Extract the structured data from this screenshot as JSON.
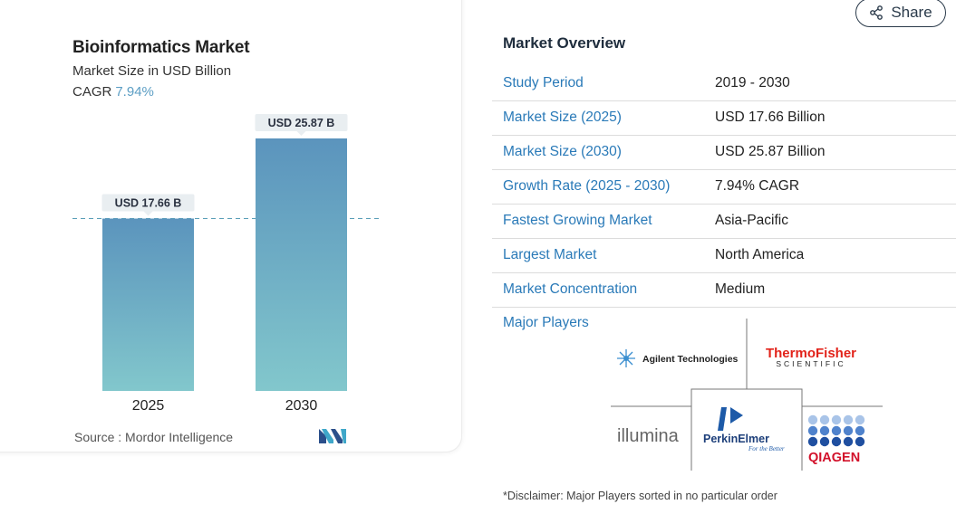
{
  "chart_data": {
    "type": "bar",
    "title": "Bioinformatics Market",
    "subtitle": "Market Size in USD Billion",
    "cagr_label": "CAGR",
    "cagr_value": "7.94%",
    "categories": [
      "2025",
      "2030"
    ],
    "values": [
      17.66,
      25.87
    ],
    "data_labels": [
      "USD 17.66 B",
      "USD 25.87 B"
    ],
    "ylim": [
      0,
      28
    ],
    "grid": false,
    "reference_line": 17.66,
    "colors": {
      "bar_top": "#5b94bd",
      "bar_bottom": "#82c7cc",
      "reference": "#5a9fb8"
    }
  },
  "source": "Source :  Mordor Intelligence",
  "share_label": "Share",
  "overview": {
    "title": "Market Overview",
    "rows": [
      {
        "key": "Study Period",
        "value": "2019 - 2030"
      },
      {
        "key": "Market Size (2025)",
        "value": "USD 17.66 Billion"
      },
      {
        "key": "Market Size (2030)",
        "value": "USD 25.87 Billion"
      },
      {
        "key": "Growth Rate (2025 - 2030)",
        "value": "7.94% CAGR"
      },
      {
        "key": "Fastest Growing Market",
        "value": "Asia-Pacific"
      },
      {
        "key": "Largest Market",
        "value": "North America"
      },
      {
        "key": "Market Concentration",
        "value": "Medium"
      }
    ]
  },
  "major_players": {
    "label": "Major Players",
    "logos": {
      "agilent": "Agilent Technologies",
      "thermo_1": "ThermoFisher",
      "thermo_2": "SCIENTIFIC",
      "illumina": "illumina",
      "perkin": "PerkinElmer",
      "perkin_tag": "For the Better",
      "qiagen": "QIAGEN"
    }
  },
  "disclaimer": "*Disclaimer: Major Players sorted in no particular order",
  "colors": {
    "link": "#2a7ab8",
    "cagr": "#5c9ec4"
  }
}
